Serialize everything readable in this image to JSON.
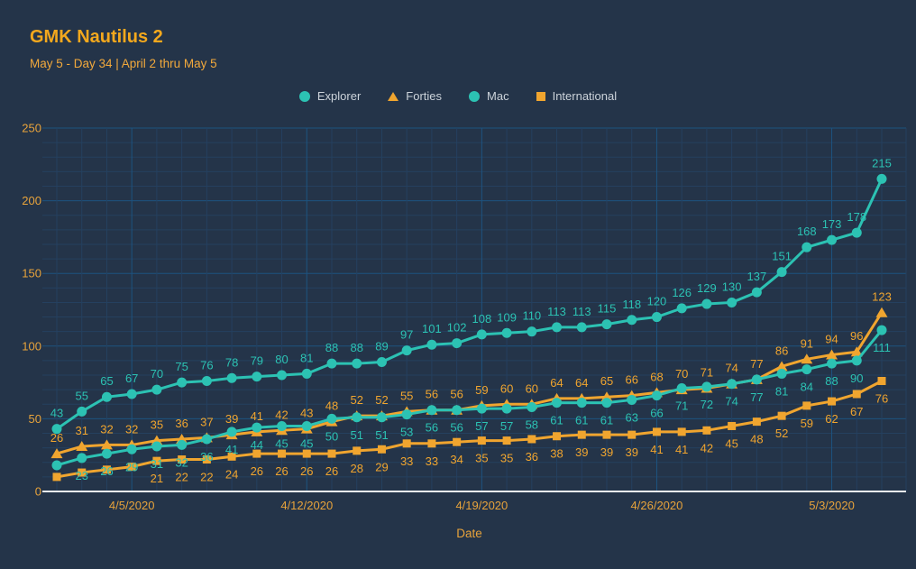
{
  "header": {
    "title": "GMK Nautilus 2",
    "subtitle": "May 5 - Day 34 | April 2 thru May 5"
  },
  "legend": [
    {
      "name": "Explorer",
      "marker": "circle",
      "color": "#2cc2b3"
    },
    {
      "name": "Forties",
      "marker": "triangle",
      "color": "#f0a52f"
    },
    {
      "name": "Mac",
      "marker": "circle",
      "color": "#2cc2b3"
    },
    {
      "name": "International",
      "marker": "square",
      "color": "#f0a52f"
    }
  ],
  "colors": {
    "background": "#243449",
    "teal": "#2cc2b3",
    "gold": "#f0a52f",
    "title": "#f3a81d",
    "axis_label": "#e8a33b",
    "legend_text": "#ccd3da",
    "axis_line": "#eef2f5",
    "grid_minor": "#25405f",
    "grid_major": "#1d5380"
  },
  "chart_data": {
    "type": "line",
    "title": "GMK Nautilus 2",
    "xlabel": "Date",
    "ylabel": "",
    "ylim": [
      0,
      250
    ],
    "y_ticks": [
      0,
      50,
      100,
      150,
      200,
      250
    ],
    "grid": true,
    "legend_position": "top-center",
    "x": [
      "4/2/2020",
      "4/3/2020",
      "4/4/2020",
      "4/5/2020",
      "4/6/2020",
      "4/7/2020",
      "4/8/2020",
      "4/9/2020",
      "4/10/2020",
      "4/11/2020",
      "4/12/2020",
      "4/13/2020",
      "4/14/2020",
      "4/15/2020",
      "4/16/2020",
      "4/17/2020",
      "4/18/2020",
      "4/19/2020",
      "4/20/2020",
      "4/21/2020",
      "4/22/2020",
      "4/23/2020",
      "4/24/2020",
      "4/25/2020",
      "4/26/2020",
      "4/27/2020",
      "4/28/2020",
      "4/29/2020",
      "4/30/2020",
      "5/1/2020",
      "5/2/2020",
      "5/3/2020",
      "5/4/2020",
      "5/5/2020"
    ],
    "x_tick_indices": [
      3,
      10,
      17,
      24,
      31
    ],
    "x_tick_labels": [
      "4/5/2020",
      "4/12/2020",
      "4/19/2020",
      "4/26/2020",
      "5/3/2020"
    ],
    "series": [
      {
        "name": "Explorer",
        "color": "#2cc2b3",
        "marker": "circle",
        "label_position": "above",
        "labels_start": 0,
        "values": [
          43,
          55,
          65,
          67,
          70,
          75,
          76,
          78,
          79,
          80,
          81,
          88,
          88,
          89,
          97,
          101,
          102,
          108,
          109,
          110,
          113,
          113,
          115,
          118,
          120,
          126,
          129,
          130,
          137,
          151,
          168,
          173,
          178,
          215
        ]
      },
      {
        "name": "Forties",
        "color": "#f0a52f",
        "marker": "triangle",
        "label_position": "above",
        "labels_start": 0,
        "values": [
          26,
          31,
          32,
          32,
          35,
          36,
          37,
          39,
          41,
          42,
          43,
          48,
          52,
          52,
          55,
          56,
          56,
          59,
          60,
          60,
          64,
          64,
          65,
          66,
          68,
          70,
          71,
          74,
          77,
          86,
          91,
          94,
          96,
          123
        ]
      },
      {
        "name": "Mac",
        "color": "#2cc2b3",
        "marker": "circle",
        "label_position": "below",
        "labels_start": 1,
        "values": [
          18,
          23,
          26,
          29,
          31,
          32,
          36,
          41,
          44,
          45,
          45,
          50,
          51,
          51,
          53,
          56,
          56,
          57,
          57,
          58,
          61,
          61,
          61,
          63,
          66,
          71,
          72,
          74,
          77,
          81,
          84,
          88,
          90,
          111
        ]
      },
      {
        "name": "International",
        "color": "#f0a52f",
        "marker": "square",
        "label_position": "below",
        "labels_start": 4,
        "values": [
          10,
          13,
          15,
          17,
          21,
          22,
          22,
          24,
          26,
          26,
          26,
          26,
          28,
          29,
          33,
          33,
          34,
          35,
          35,
          36,
          38,
          39,
          39,
          39,
          41,
          41,
          42,
          45,
          48,
          52,
          59,
          62,
          67,
          76
        ]
      }
    ]
  }
}
